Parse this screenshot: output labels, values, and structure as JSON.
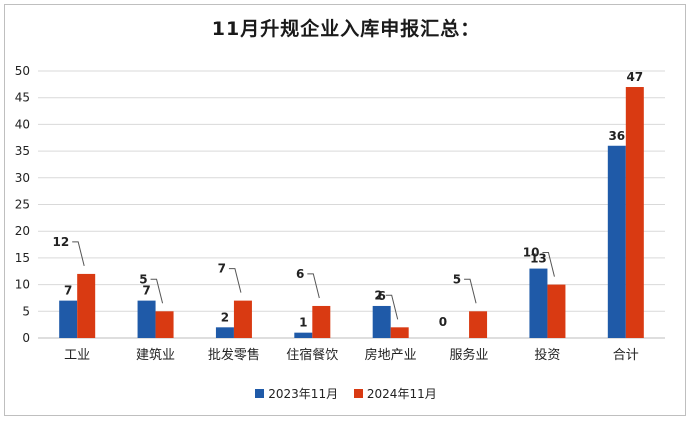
{
  "chart_data": {
    "type": "bar",
    "title": "11月升规企业入库申报汇总：",
    "categories": [
      "工业",
      "建筑业",
      "批发零售",
      "住宿餐饮",
      "房地产业",
      "服务业",
      "投资",
      "合计"
    ],
    "series": [
      {
        "name": "2023年11月",
        "color": "#1f5aa8",
        "values": [
          7,
          7,
          2,
          1,
          6,
          0,
          13,
          36
        ]
      },
      {
        "name": "2024年11月",
        "color": "#d93a12",
        "values": [
          12,
          5,
          7,
          6,
          2,
          5,
          10,
          47
        ]
      }
    ],
    "ylim": [
      0,
      50
    ],
    "yticks": [
      0,
      5,
      10,
      15,
      20,
      25,
      30,
      35,
      40,
      45,
      50
    ],
    "grid": true,
    "legend": "bottom"
  }
}
